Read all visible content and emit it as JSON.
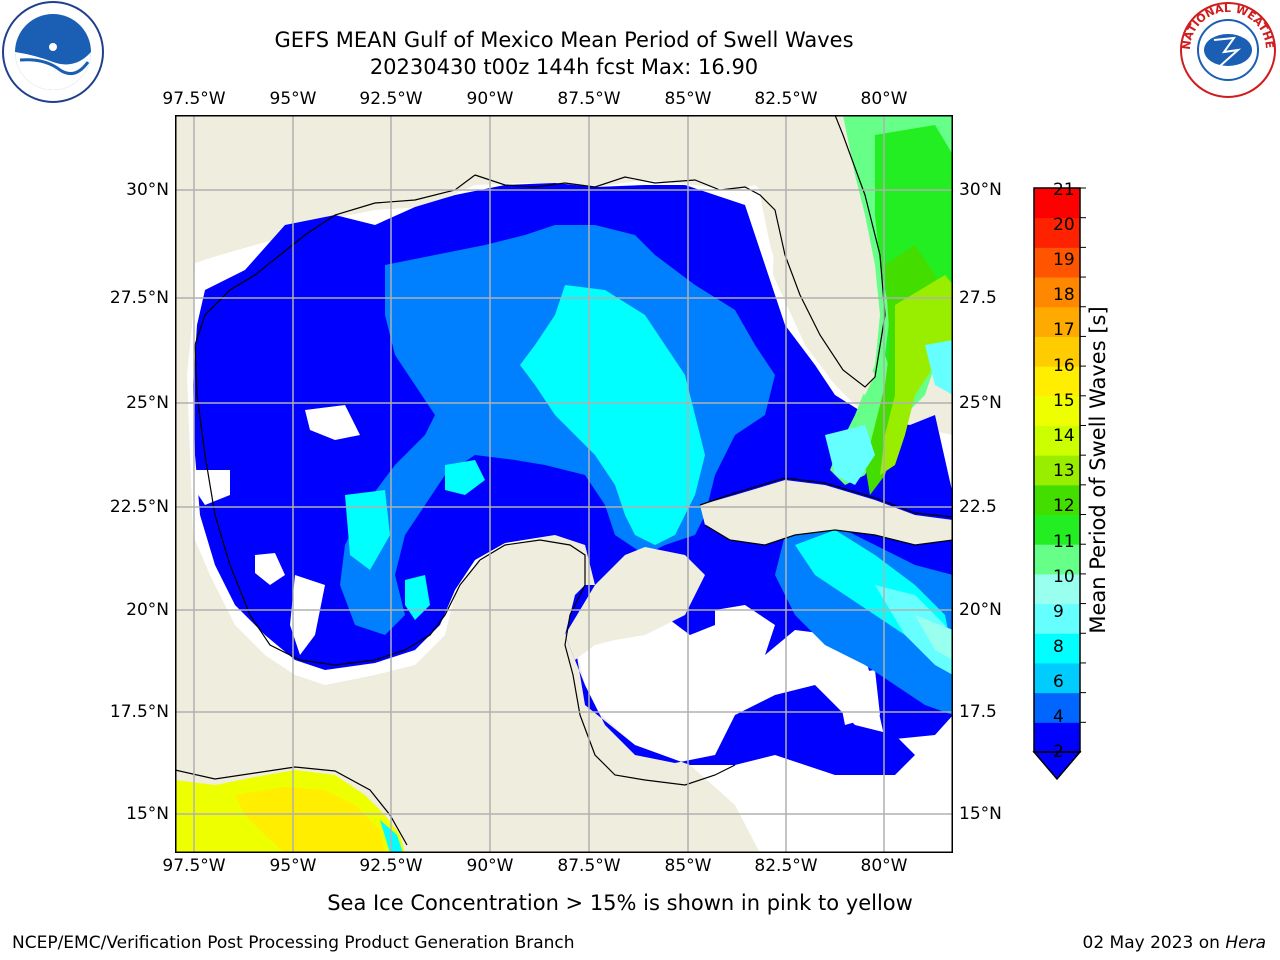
{
  "header": {
    "title_line1": "GEFS MEAN Gulf of Mexico Mean Period of Swell Waves",
    "title_line2": "20230430 t00z 144h fcst   Max: 16.90"
  },
  "map": {
    "longitude_labels": [
      "97.5°W",
      "95°W",
      "92.5°W",
      "90°W",
      "87.5°W",
      "85°W",
      "82.5°W",
      "80°W"
    ],
    "latitude_labels": [
      "30°N",
      "27.5°N",
      "25°N",
      "22.5°N",
      "20°N",
      "17.5°N",
      "15°N"
    ],
    "right_latitude_labels": [
      "30°N",
      "27.5",
      "25°N",
      "22.5",
      "20°N",
      "17.5",
      "15°N"
    ],
    "land_color": "#efedde",
    "no_data_color": "#ffffff",
    "grid_color": "#b0b0b0"
  },
  "colorbar": {
    "title": "Mean Period of Swell Waves [s]",
    "tick_labels": [
      "21",
      "20",
      "19",
      "18",
      "17",
      "16",
      "15",
      "14",
      "13",
      "12",
      "11",
      "10",
      "9",
      "8",
      "6",
      "4",
      "2"
    ],
    "colors": [
      "#0000ff",
      "#0066ff",
      "#00ccff",
      "#00ffff",
      "#66ffff",
      "#99ffee",
      "#66ff88",
      "#22ee22",
      "#44dd00",
      "#99ee00",
      "#ccff00",
      "#eeff00",
      "#ffee00",
      "#ffcc00",
      "#ffaa00",
      "#ff8800",
      "#ff5500",
      "#ff2200",
      "#ff0000"
    ],
    "extend_color": "#0000ff"
  },
  "caption": "Sea Ice Concentration > 15% is shown in pink to yellow",
  "footer": {
    "left": "NCEP/EMC/Verification Post Processing Product Generation Branch",
    "date": "02 May 2023 on ",
    "host": "Hera"
  },
  "logos": {
    "left": "noaa-logo",
    "right": "national-weather-service-logo",
    "nws_text": "NATIONAL WEATHER SERVICE"
  }
}
